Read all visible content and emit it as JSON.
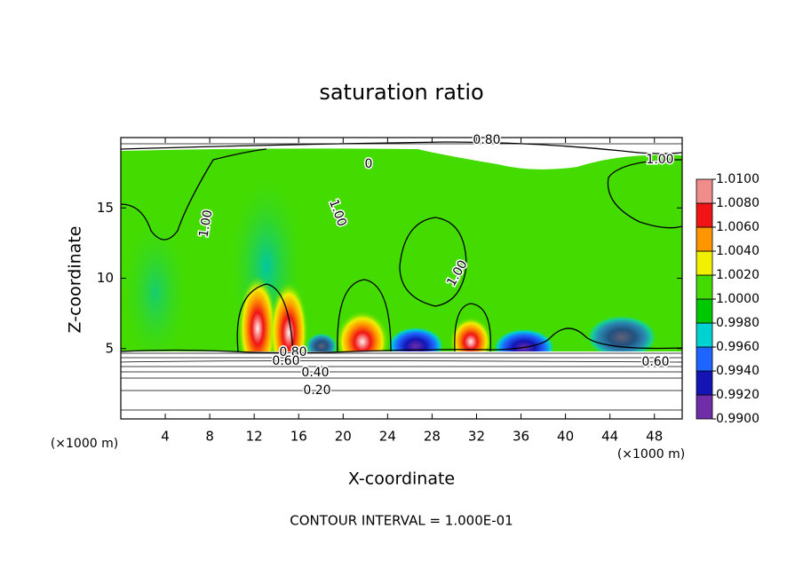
{
  "chart_data": {
    "type": "contour",
    "title": "saturation ratio",
    "x_label": "X-coordinate",
    "y_label": "Z-coordinate",
    "unit_labels": [
      "(×1000 m)",
      "(×1000 m)"
    ],
    "xlim": [
      0,
      50.5
    ],
    "xticks": [
      4,
      8,
      12,
      16,
      20,
      24,
      28,
      32,
      36,
      40,
      44,
      48
    ],
    "ylim": [
      0,
      20
    ],
    "yticks": [
      5,
      10,
      15
    ],
    "colorbar": {
      "lim": [
        0.99,
        1.01
      ],
      "ticks": [
        {
          "value": 0.99,
          "label": "0.9900"
        },
        {
          "value": 0.992,
          "label": "0.9920"
        },
        {
          "value": 0.994,
          "label": "0.9940"
        },
        {
          "value": 0.996,
          "label": "0.9960"
        },
        {
          "value": 0.998,
          "label": "0.9980"
        },
        {
          "value": 1.0,
          "label": "1.0000"
        },
        {
          "value": 1.002,
          "label": "1.0020"
        },
        {
          "value": 1.004,
          "label": "1.0040"
        },
        {
          "value": 1.006,
          "label": "1.0060"
        },
        {
          "value": 1.008,
          "label": "1.0080"
        },
        {
          "value": 1.01,
          "label": "1.0100"
        }
      ],
      "colors": [
        "#6f2da8",
        "#1414b4",
        "#1e64ff",
        "#00d2d2",
        "#00c800",
        "#44dc00",
        "#f0f000",
        "#ff9600",
        "#f01414",
        "#f08c8c"
      ]
    },
    "contour_labels": [
      "0.80",
      "1.00",
      "0",
      "1.00",
      "1.00",
      "1.00",
      "0.80",
      "0.60",
      "0.40",
      "0.20",
      "0.60"
    ],
    "note": "CONTOUR INTERVAL = 1.000E-01"
  }
}
